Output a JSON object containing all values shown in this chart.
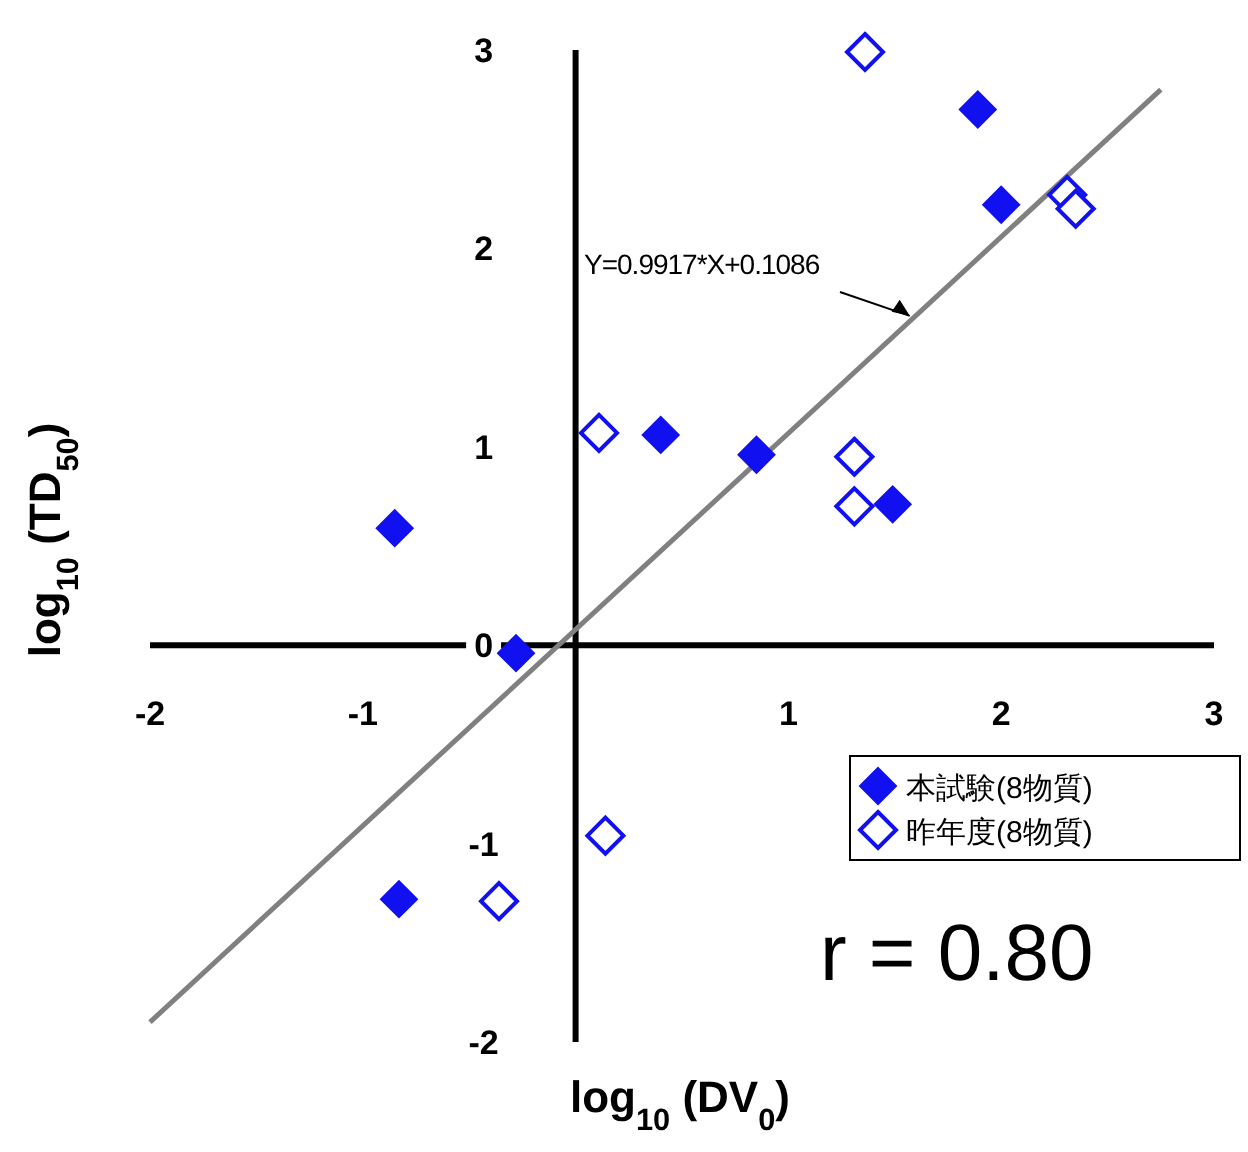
{
  "chart_data": {
    "type": "scatter",
    "xlabel": "log$_{10}$ (DV$_{0}$)",
    "ylabel": "log$_{10}$ (TD$_{50}$)",
    "xlim": [
      -2,
      3
    ],
    "ylim": [
      -2,
      3
    ],
    "xticks": [
      -2,
      -1,
      1,
      2,
      3
    ],
    "yticks": [
      -2,
      -1,
      0,
      1,
      2,
      3
    ],
    "grid": false,
    "legend": "bottom right",
    "annotations": [
      {
        "text": "Y=0.9917*X+0.1086",
        "x": 1.57,
        "y": 1.66
      },
      "r = 0.80"
    ],
    "series": [
      {
        "name": "本試験(8物質)",
        "color": "#1010f0",
        "marker": "diamond",
        "x": [
          -0.85,
          0.4,
          0.85,
          1.49,
          1.89,
          2.0,
          -0.28,
          -0.83
        ],
        "values": [
          0.59,
          1.06,
          0.96,
          0.71,
          2.7,
          2.22,
          -0.04,
          -1.28
        ]
      },
      {
        "name": "昨年度(8物質)",
        "color": "#1010f0",
        "marker": "diamond_open",
        "x": [
          1.36,
          0.11,
          1.31,
          1.31,
          2.31,
          2.35,
          0.14,
          -0.36
        ],
        "values": [
          2.99,
          1.07,
          0.95,
          0.7,
          2.27,
          2.2,
          -0.96,
          -1.29
        ]
      },
      {
        "type": "line",
        "color": "#808080",
        "marker": "none",
        "x": [
          -2.0,
          2.75
        ],
        "values": [
          -1.9,
          2.8
        ]
      }
    ]
  }
}
